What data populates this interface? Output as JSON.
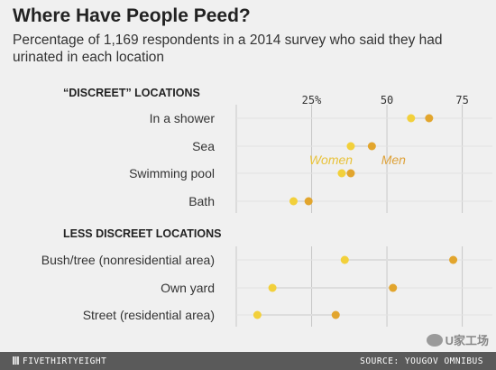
{
  "header": {
    "title": "Where Have People Peed?",
    "subtitle": "Percentage of 1,169 respondents in a 2014 survey who said they had urinated in each location"
  },
  "footer": {
    "left": "FIVETHIRTYEIGHT",
    "right": "SOURCE: YOUGOV OMNIBUS"
  },
  "watermark": {
    "text": "U家工场"
  },
  "colors": {
    "women": "#f2d03b",
    "men": "#e2a52d",
    "gridline": "#c8c8c8",
    "women_label": "#e8c23a",
    "men_label": "#dea23a"
  },
  "chart_data": {
    "type": "scatter",
    "title": "Where Have People Peed?",
    "subtitle": "Percentage of 1,169 respondents in a 2014 survey who said they had urinated in each location",
    "xlim": [
      0,
      85
    ],
    "x_ticks": [
      25,
      50,
      75
    ],
    "x_tick_labels": [
      "25%",
      "50",
      "75"
    ],
    "series_names": [
      "Women",
      "Men"
    ],
    "sections": [
      {
        "label": "“DISCREET” LOCATIONS",
        "categories": [
          "In a shower",
          "Sea",
          "Swimming pool",
          "Bath"
        ],
        "series": [
          {
            "name": "Women",
            "values": [
              58,
              38,
              35,
              19
            ]
          },
          {
            "name": "Men",
            "values": [
              64,
              45,
              38,
              24
            ]
          }
        ]
      },
      {
        "label": "LESS DISCREET LOCATIONS",
        "categories": [
          "Bush/tree (nonresidential area)",
          "Own yard",
          "Street (residential area)"
        ],
        "series": [
          {
            "name": "Women",
            "values": [
              36,
              12,
              7
            ]
          },
          {
            "name": "Men",
            "values": [
              72,
              52,
              33
            ]
          }
        ]
      }
    ]
  }
}
